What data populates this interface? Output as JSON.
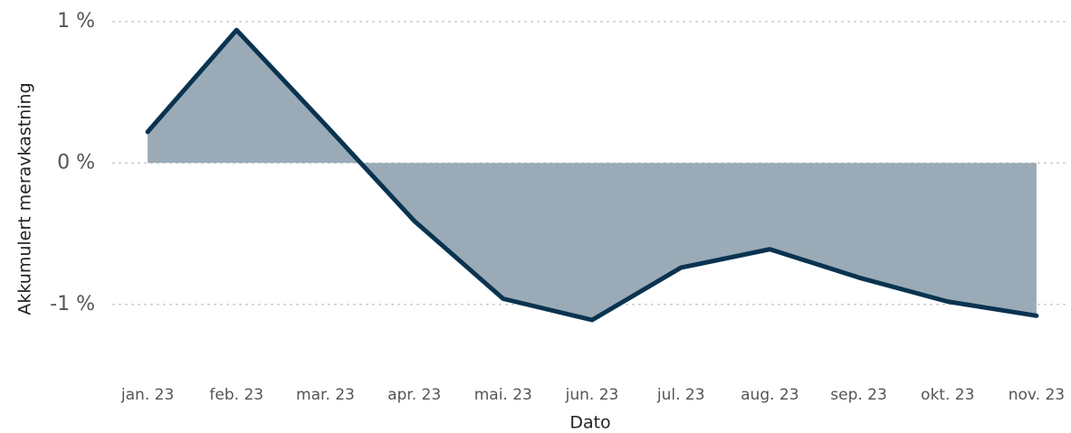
{
  "chart_data": {
    "type": "area",
    "categories": [
      "jan. 23",
      "feb. 23",
      "mar. 23",
      "apr. 23",
      "mai. 23",
      "jun. 23",
      "jul. 23",
      "aug. 23",
      "sep. 23",
      "okt. 23",
      "nov. 23"
    ],
    "values": [
      0.22,
      0.94,
      0.27,
      -0.41,
      -0.96,
      -1.11,
      -0.74,
      -0.61,
      -0.81,
      -0.98,
      -1.08
    ],
    "line_color": "#0a3350",
    "fill_color": "#9aabb7",
    "ylim": [
      -1.5,
      1.05
    ],
    "yticks": [
      {
        "value": -1,
        "label": "-1 %"
      },
      {
        "value": 0,
        "label": "0 %"
      },
      {
        "value": 1,
        "label": "1 %"
      }
    ],
    "grid": true,
    "xlabel": "Dato",
    "ylabel": "Akkumulert meravkastning"
  }
}
